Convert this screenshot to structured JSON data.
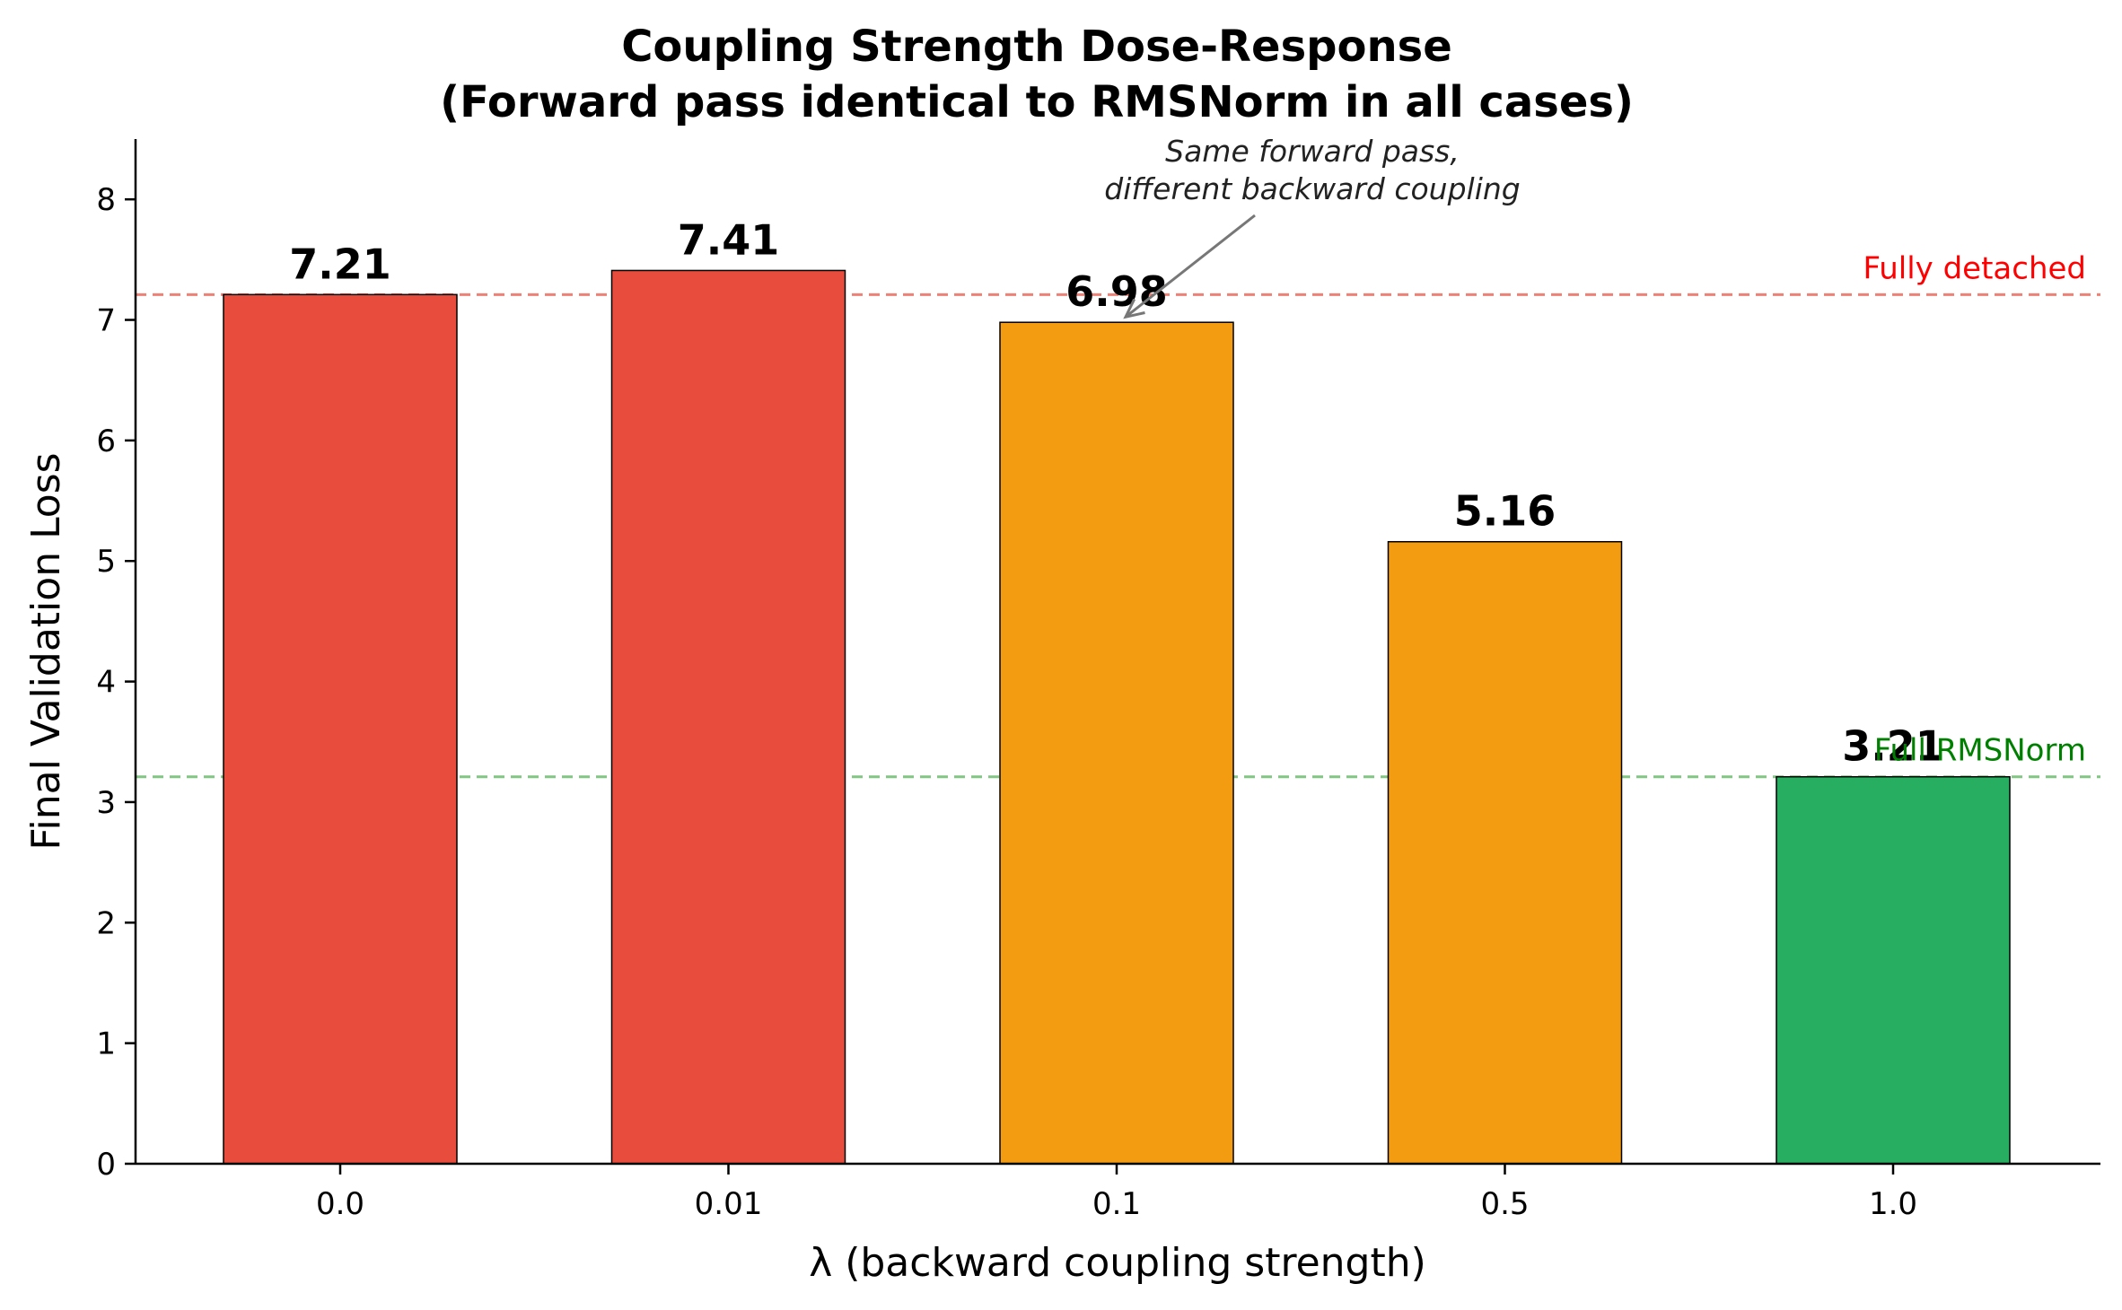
{
  "chart_data": {
    "type": "bar",
    "title": "Coupling Strength Dose-Response",
    "subtitle": "(Forward pass identical to RMSNorm in all cases)",
    "xlabel": "λ (backward coupling strength)",
    "ylabel": "Final Validation Loss",
    "categories": [
      "0.0",
      "0.01",
      "0.1",
      "0.5",
      "1.0"
    ],
    "values": [
      7.21,
      7.41,
      6.98,
      5.16,
      3.21
    ],
    "value_labels": [
      "7.21",
      "7.41",
      "6.98",
      "5.16",
      "3.21"
    ],
    "bar_colors": [
      "#e74c3c",
      "#e74c3c",
      "#f39c12",
      "#f39c12",
      "#27ae60"
    ],
    "ylim": [
      0,
      8.5
    ],
    "yticks": [
      0,
      1,
      2,
      3,
      4,
      5,
      6,
      7,
      8
    ],
    "grid": false,
    "reference_lines": [
      {
        "label": "Fully detached",
        "value": 7.21,
        "color": "#e74c3c",
        "label_color": "#ff0000"
      },
      {
        "label": "Full RMSNorm",
        "value": 3.21,
        "color": "#4caf50",
        "label_color": "#008000"
      }
    ],
    "annotation": {
      "lines": [
        "Same forward pass,",
        "different backward coupling"
      ],
      "target_category": "0.1",
      "target_value": 6.98
    }
  }
}
